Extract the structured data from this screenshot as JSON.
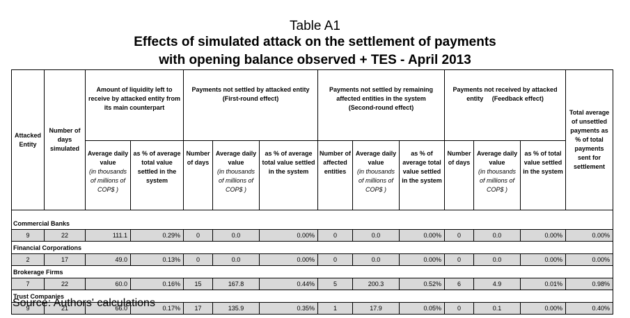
{
  "header": {
    "label": "Table A1",
    "title_line1": "Effects of simulated attack on the settlement of payments",
    "title_line2": "with opening balance observed + TES - April 2013"
  },
  "table": {
    "top_headers": {
      "entity": "Attacked Entity",
      "days": "Number of days simulated",
      "liquidity": "Amount of liquidity left to receive by attacked entity from its main counterpart",
      "first_round": {
        "title": "Payments not settled by attacked entity",
        "effect": "(First-round effect)"
      },
      "second_round": {
        "title": "Payments not settled by remaining affected entities in the system",
        "effect": "(Second-round effect)"
      },
      "feedback": {
        "title": "Payments not received by attacked entity",
        "effect": "(Feedback effect)"
      },
      "total": "Total average of unsettled payments as % of total payments sent for settlement"
    },
    "sub_headers": [
      {
        "text": "Average daily value",
        "note": "(in thousands of millions of COP$ )"
      },
      {
        "text": "as % of average total value settled in the system"
      },
      {
        "text": "Number of days"
      },
      {
        "text": "Average daily value",
        "note": "(in thousands of millions of COP$ )"
      },
      {
        "text": "as % of average total value settled in the system"
      },
      {
        "text": "Number of affected entities"
      },
      {
        "text": "Average daily value",
        "note": "(in thousands of millions of COP$ )"
      },
      {
        "text": "as % of average total value settled in the system"
      },
      {
        "text": "Number of days"
      },
      {
        "text": "Average daily value",
        "note": "(in thousands of millions of COP$ )"
      },
      {
        "text": "as % of total value settled in the system"
      }
    ],
    "groups": [
      {
        "name": "Commercial Banks",
        "row": [
          "9",
          "22",
          "111.1",
          "0.29%",
          "0",
          "0.0",
          "0.00%",
          "0",
          "0.0",
          "0.00%",
          "0",
          "0.0",
          "0.00%",
          "0.00%"
        ]
      },
      {
        "name": "Financial Corporations",
        "row": [
          "2",
          "17",
          "49.0",
          "0.13%",
          "0",
          "0.0",
          "0.00%",
          "0",
          "0.0",
          "0.00%",
          "0",
          "0.0",
          "0.00%",
          "0.00%"
        ]
      },
      {
        "name": "Brokerage Firms",
        "row": [
          "7",
          "22",
          "60.0",
          "0.16%",
          "15",
          "167.8",
          "0.44%",
          "5",
          "200.3",
          "0.52%",
          "6",
          "4.9",
          "0.01%",
          "0.98%"
        ]
      },
      {
        "name": "Trust Companies",
        "row": [
          "9",
          "21",
          "66.0",
          "0.17%",
          "17",
          "135.9",
          "0.35%",
          "1",
          "17.9",
          "0.05%",
          "0",
          "0.1",
          "0.00%",
          "0.40%"
        ]
      }
    ]
  },
  "source": "Source:  Authors' calculations"
}
